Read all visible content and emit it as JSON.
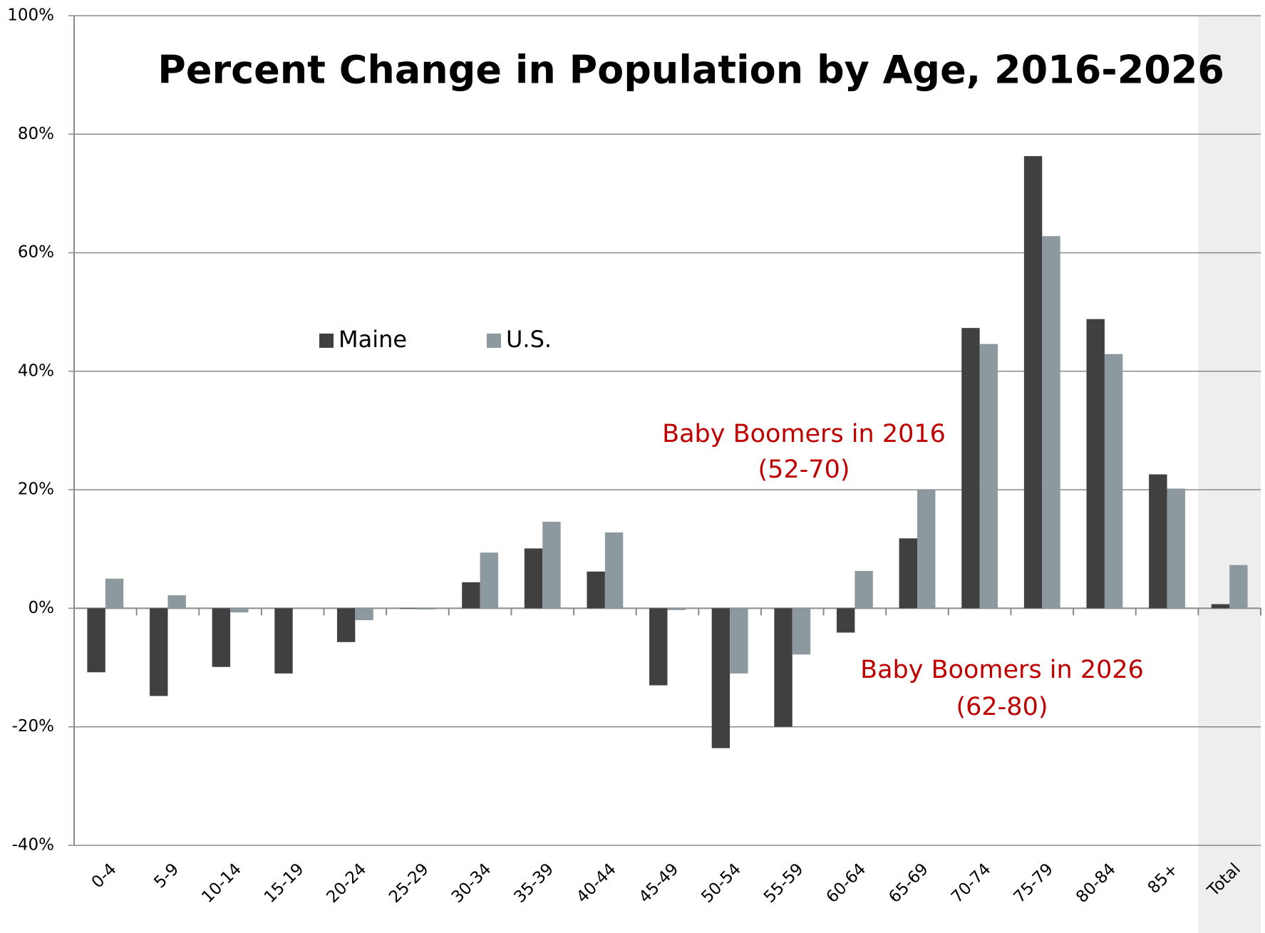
{
  "chart_data": {
    "type": "bar",
    "title": "Percent Change in Population by Age, 2016-2026",
    "categories": [
      "0-4",
      "5-9",
      "10-14",
      "15-19",
      "20-24",
      "25-29",
      "30-34",
      "35-39",
      "40-44",
      "45-49",
      "50-54",
      "55-59",
      "60-64",
      "65-69",
      "70-74",
      "75-79",
      "80-84",
      "85+",
      "Total"
    ],
    "series": [
      {
        "name": "Maine",
        "color": "#404040",
        "values": [
          -10.8,
          -14.8,
          -9.9,
          -11.0,
          -5.7,
          -0.1,
          4.4,
          10.1,
          6.2,
          -13.0,
          -23.6,
          -20.0,
          -4.1,
          11.8,
          47.3,
          76.3,
          48.8,
          22.6,
          0.7
        ]
      },
      {
        "name": "U.S.",
        "color": "#8c999f",
        "values": [
          5.0,
          2.2,
          -0.7,
          0,
          -2.0,
          -0.2,
          9.4,
          14.6,
          12.8,
          -0.3,
          -11.0,
          -7.8,
          6.3,
          20.0,
          44.6,
          62.8,
          42.9,
          20.2,
          7.3
        ]
      }
    ],
    "ylim": [
      -40,
      100
    ],
    "yticks": [
      {
        "value": -40,
        "label": "-40%"
      },
      {
        "value": -20,
        "label": "-20%"
      },
      {
        "value": 0,
        "label": "0%"
      },
      {
        "value": 20,
        "label": "20%"
      },
      {
        "value": 40,
        "label": "40%"
      },
      {
        "value": 60,
        "label": "60%"
      },
      {
        "value": 80,
        "label": "80%"
      },
      {
        "value": 100,
        "label": "100%"
      }
    ],
    "grid": true,
    "annotations": [
      "Baby Boomers in 2016",
      "(52-70)",
      "Baby Boomers in 2026",
      "(62-80)"
    ],
    "annotation_color": "#c00000"
  }
}
